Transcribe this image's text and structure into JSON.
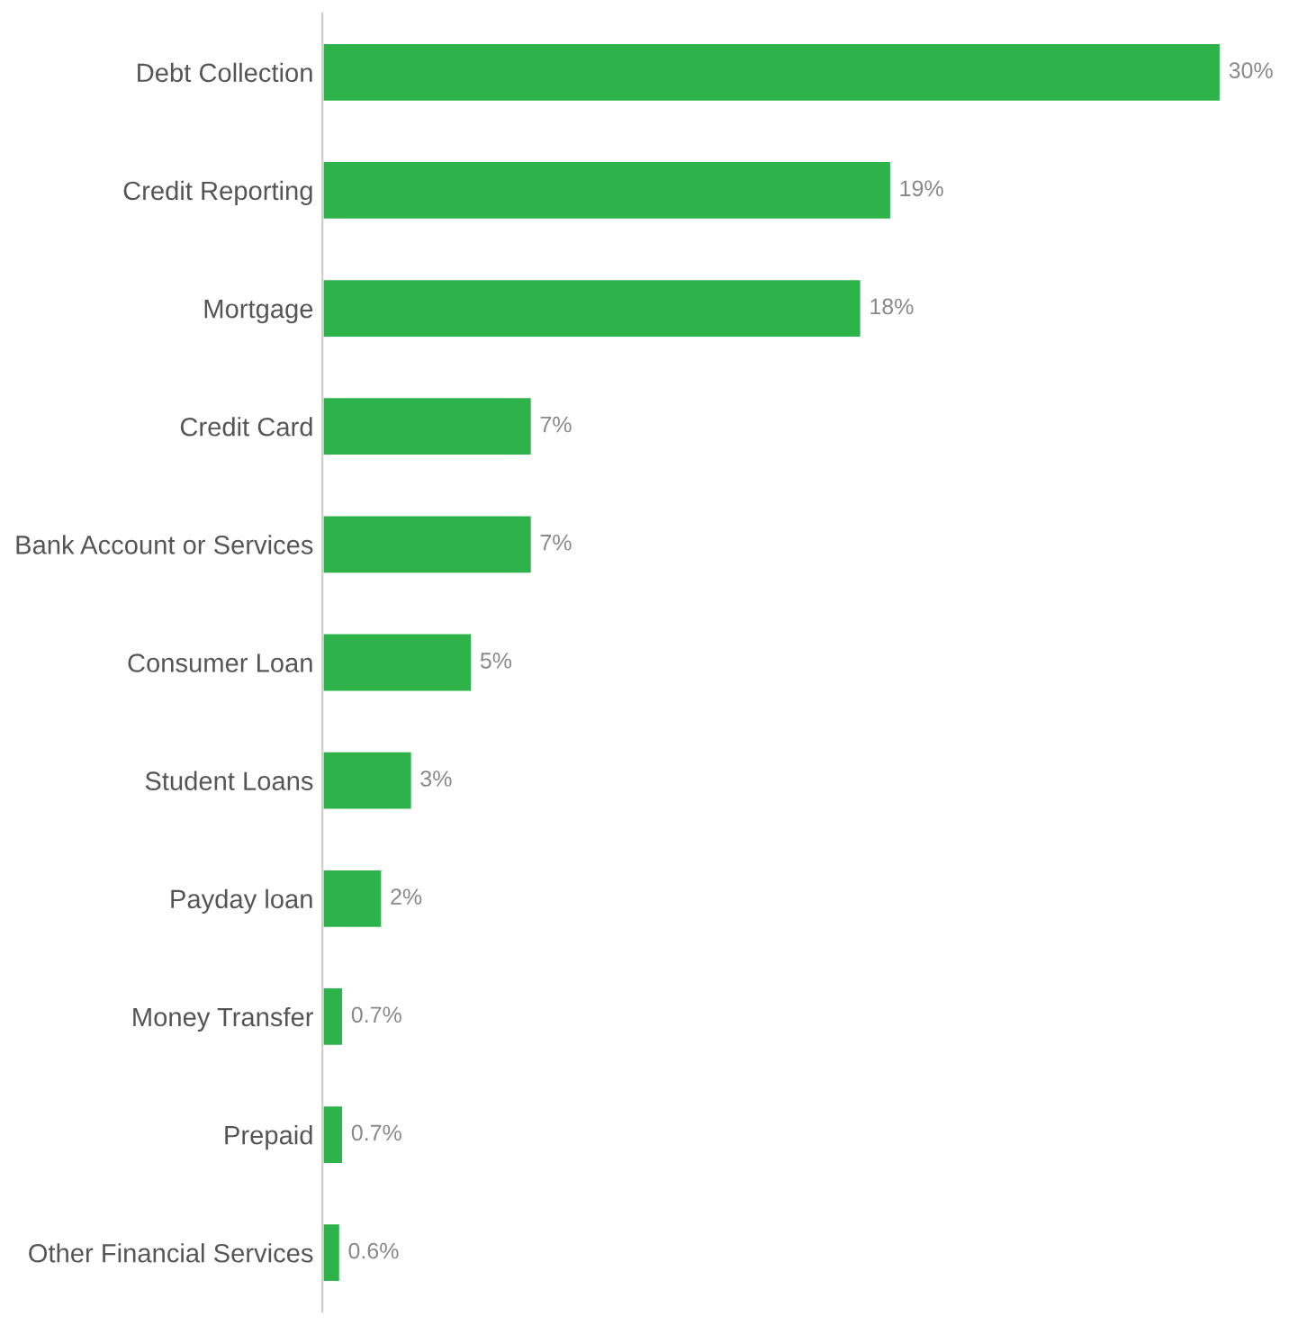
{
  "chart_data": {
    "type": "bar",
    "orientation": "horizontal",
    "categories": [
      "Debt Collection",
      "Credit Reporting",
      "Mortgage",
      "Credit Card",
      "Bank Account or Services",
      "Consumer Loan",
      "Student Loans",
      "Payday loan",
      "Money Transfer",
      "Prepaid",
      "Other Financial Services"
    ],
    "values": [
      30,
      19,
      18,
      7,
      7,
      5,
      3,
      2,
      0.7,
      0.7,
      0.6
    ],
    "value_labels": [
      "30%",
      "19%",
      "18%",
      "7%",
      "7%",
      "5%",
      "3%",
      "2%",
      "0.7%",
      "0.7%",
      "0.6%"
    ],
    "color": "#2db34a",
    "grid": false,
    "legend": false
  }
}
